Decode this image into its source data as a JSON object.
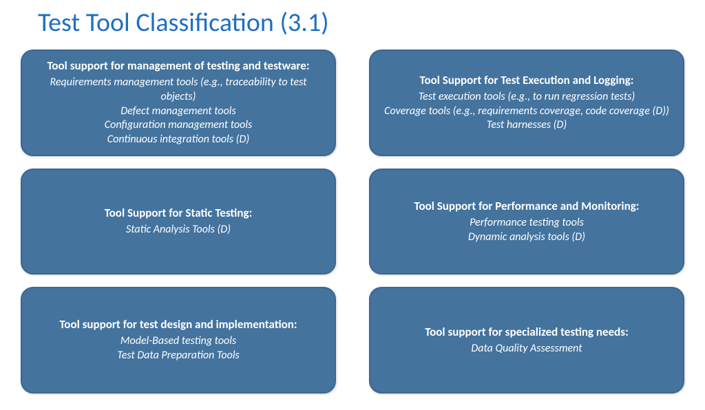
{
  "title": {
    "text": "Test Tool Classification (3.1)",
    "color": "#1f6fc1",
    "fontsize": 38
  },
  "layout": {
    "columns": 2,
    "rows": 3,
    "card_bg": "#44739e",
    "card_border": "#3c6691",
    "card_text_color": "#ffffff",
    "card_radius": 18,
    "title_fontsize": 17,
    "item_fontsize": 16
  },
  "cards": [
    {
      "title": "Tool support for management of testing and testware:",
      "items": [
        "Requirements management tools (e.g., traceability to test objects)",
        "Defect management tools",
        "Configuration management tools",
        "Continuous integration tools (D)"
      ]
    },
    {
      "title": "Tool Support for Test Execution and Logging:",
      "items": [
        "Test execution tools (e.g., to run regression tests)",
        "Coverage tools (e.g., requirements coverage, code coverage (D))",
        "Test harnesses (D)"
      ]
    },
    {
      "title": "Tool Support for Static Testing:",
      "items": [
        "Static Analysis Tools (D)"
      ]
    },
    {
      "title": "Tool Support for Performance and Monitoring:",
      "items": [
        "Performance testing tools",
        "Dynamic analysis tools (D)"
      ]
    },
    {
      "title": "Tool support for test design and implementation:",
      "items": [
        "Model-Based testing tools",
        "Test Data Preparation Tools"
      ]
    },
    {
      "title": "Tool support for specialized testing needs:",
      "items": [
        "Data Quality Assessment"
      ]
    }
  ]
}
